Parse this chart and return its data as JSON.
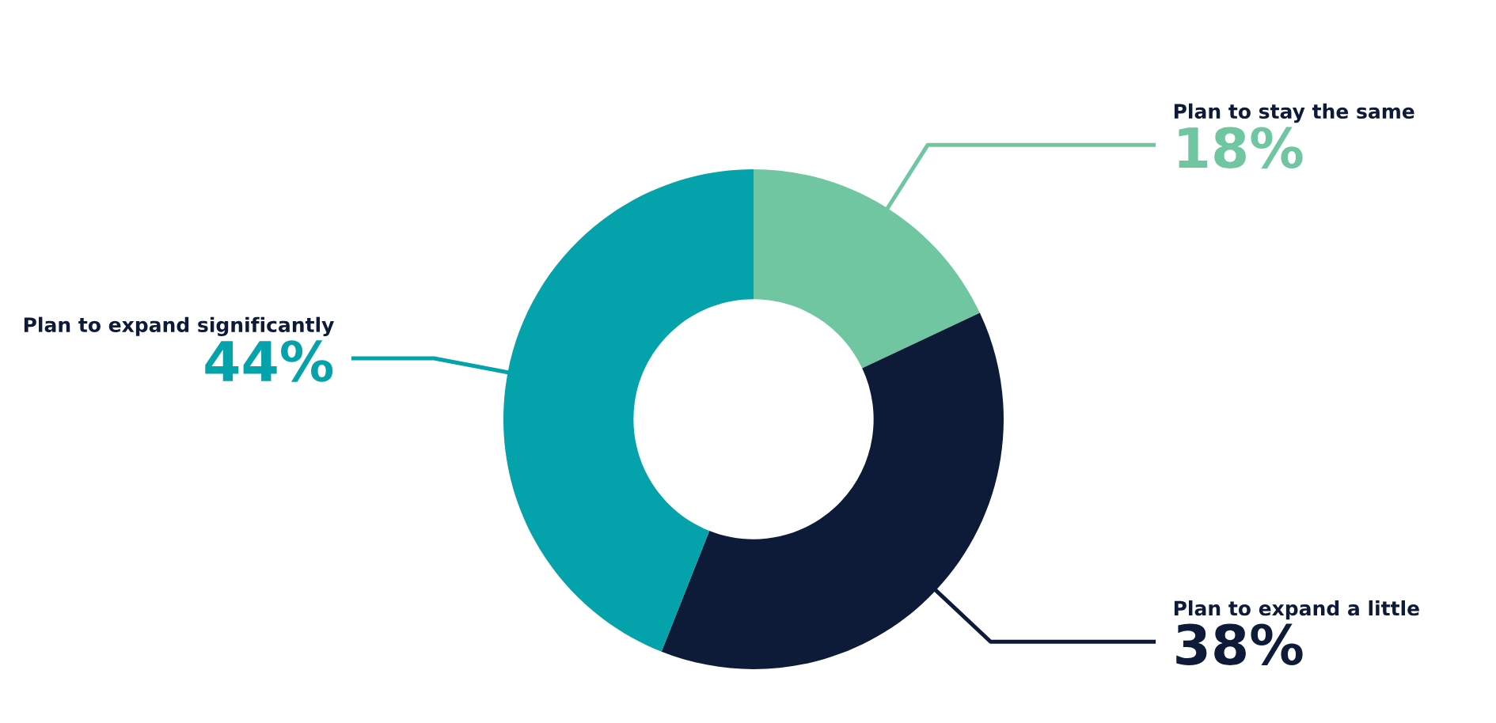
{
  "chart_data": {
    "type": "donut",
    "categories": [
      "Plan to stay the same",
      "Plan to expand a little",
      "Plan to expand significantly"
    ],
    "values": [
      18,
      38,
      44
    ],
    "colors": [
      "#6fc6a0",
      "#0e1b38",
      "#04a2ab"
    ],
    "value_labels": [
      "18%",
      "38%",
      "44%"
    ]
  }
}
